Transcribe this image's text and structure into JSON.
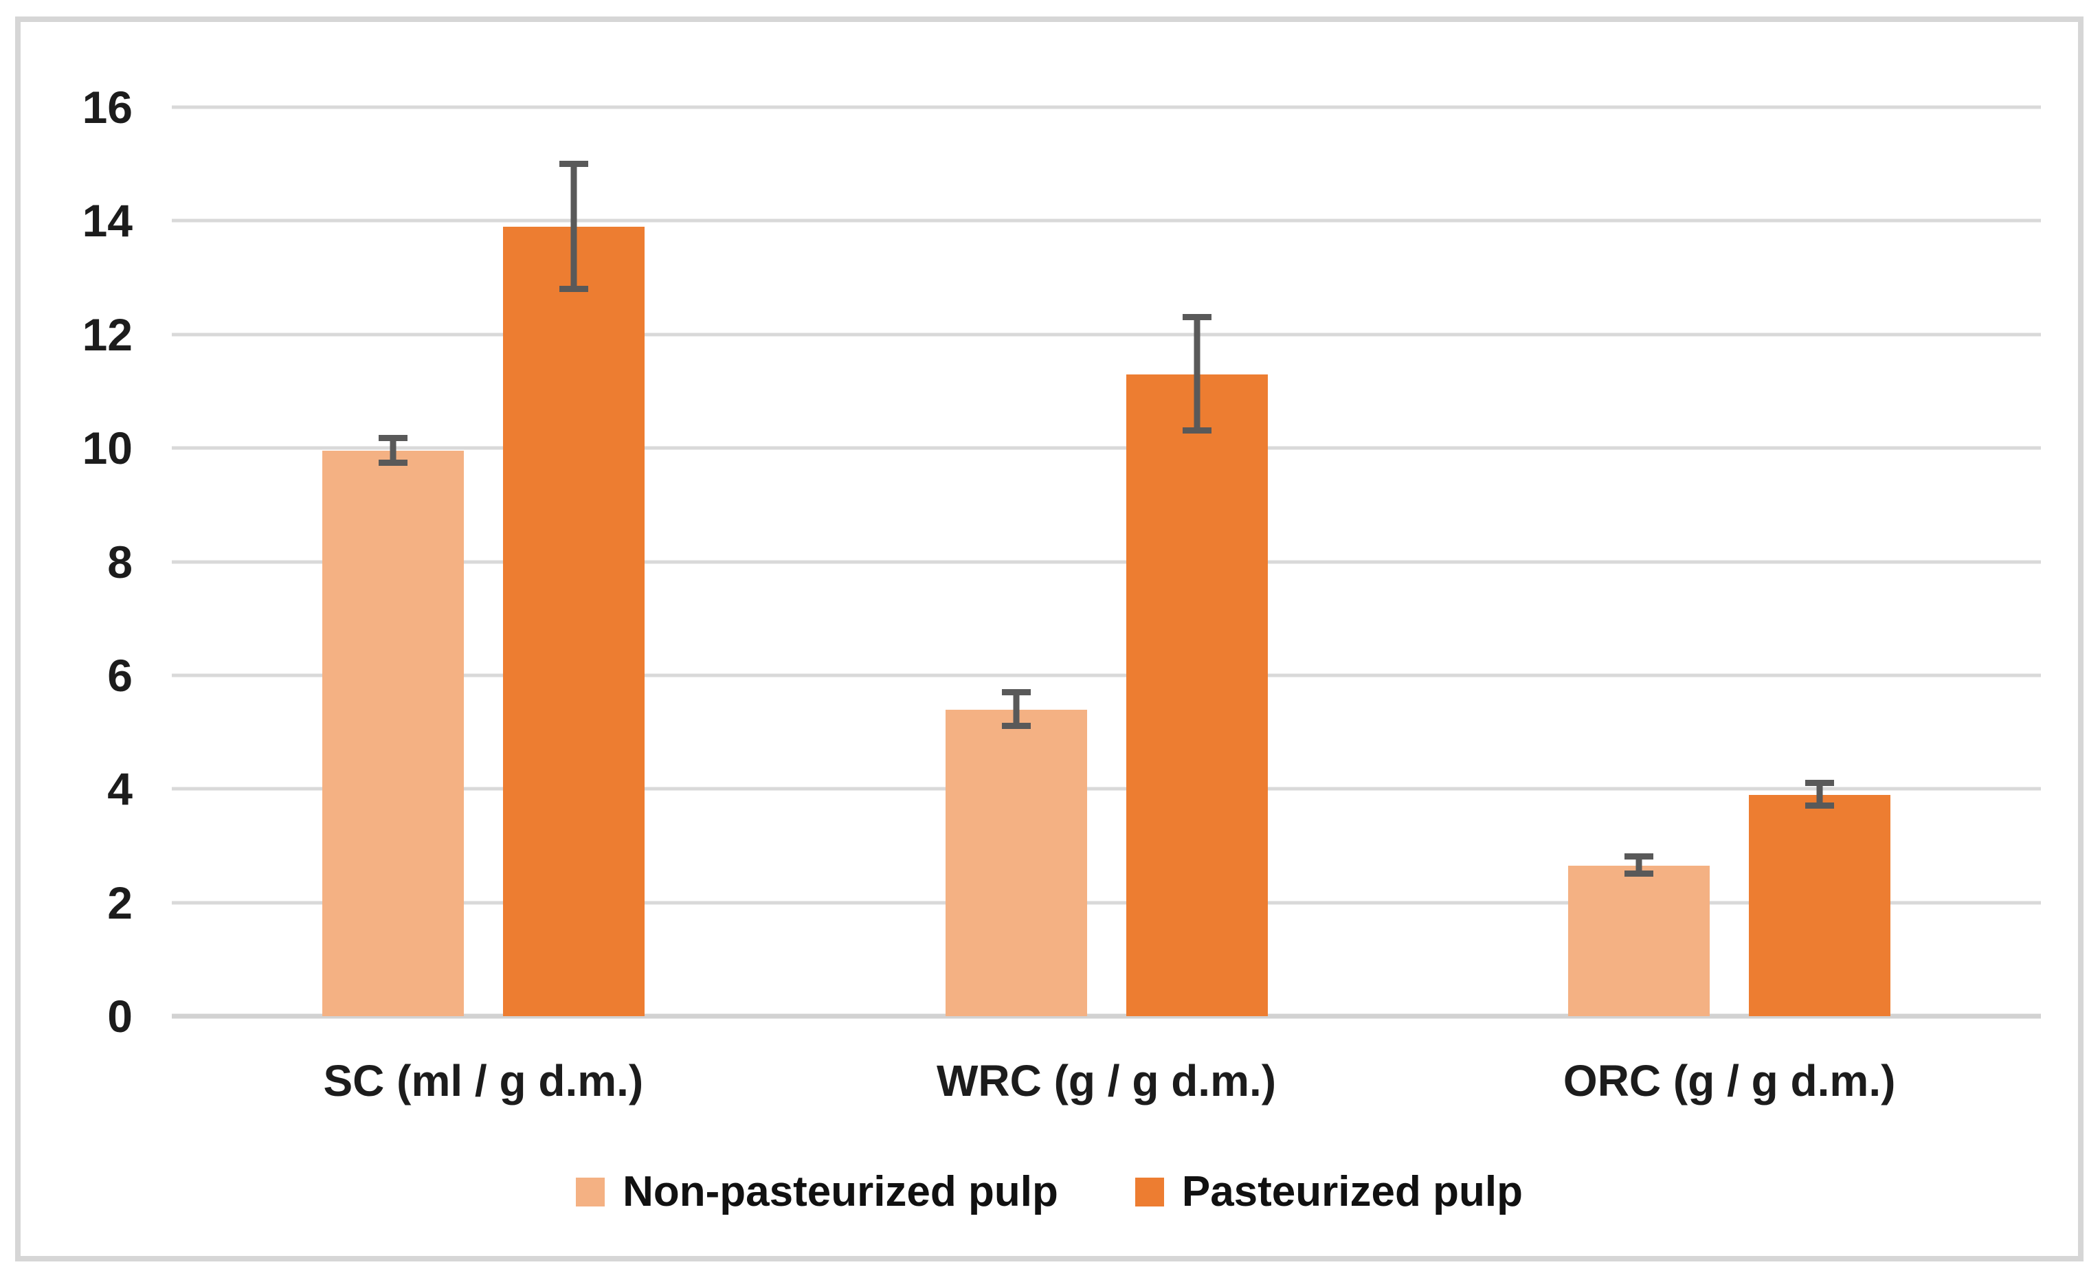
{
  "chart_data": {
    "type": "bar",
    "title": "",
    "xlabel": "",
    "ylabel": "",
    "categories": [
      "SC (ml / g d.m.)",
      "WRC (g / g d.m.)",
      "ORC (g / g d.m.)"
    ],
    "series": [
      {
        "name": "Non-pasteurized pulp",
        "color": "#F4B183",
        "values": [
          9.95,
          5.4,
          2.65
        ],
        "errors": [
          0.22,
          0.3,
          0.15
        ]
      },
      {
        "name": "Pasteurized pulp",
        "color": "#ED7D31",
        "values": [
          13.9,
          11.3,
          3.9
        ],
        "errors": [
          1.1,
          1.0,
          0.2
        ]
      }
    ],
    "ylim": [
      0,
      16
    ],
    "yticks": [
      0,
      2,
      4,
      6,
      8,
      10,
      12,
      14,
      16
    ],
    "grid": "horizontal",
    "gridline_color": "#D9D9D9",
    "error_bar_color": "#595959",
    "legend_position": "bottom",
    "plot_background": "#FFFFFF",
    "frame_border_color": "#D6D6D6"
  }
}
